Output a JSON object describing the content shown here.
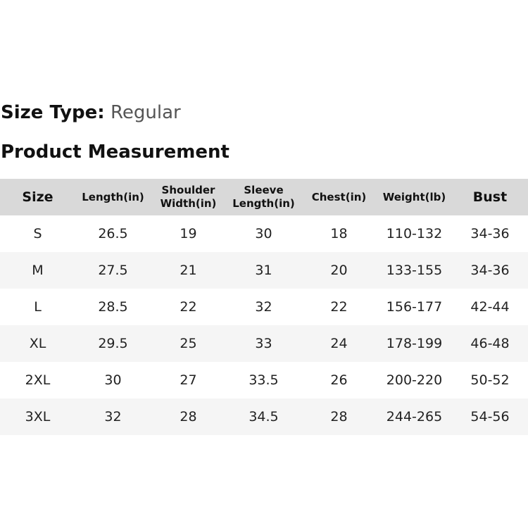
{
  "size_type": {
    "label": "Size Type:",
    "value": "Regular"
  },
  "section_title": "Product Measurement",
  "table": {
    "headers": [
      "Size",
      "Length(in)",
      "Shoulder Width(in)",
      "Sleeve Length(in)",
      "Chest(in)",
      "Weight(lb)",
      "Bust"
    ],
    "rows": [
      [
        "S",
        "26.5",
        "19",
        "30",
        "18",
        "110-132",
        "34-36"
      ],
      [
        "M",
        "27.5",
        "21",
        "31",
        "20",
        "133-155",
        "34-36"
      ],
      [
        "L",
        "28.5",
        "22",
        "32",
        "22",
        "156-177",
        "42-44"
      ],
      [
        "XL",
        "29.5",
        "25",
        "33",
        "24",
        "178-199",
        "46-48"
      ],
      [
        "2XL",
        "30",
        "27",
        "33.5",
        "26",
        "200-220",
        "50-52"
      ],
      [
        "3XL",
        "32",
        "28",
        "34.5",
        "28",
        "244-265",
        "54-56"
      ]
    ]
  },
  "colors": {
    "header_background": "#d9d9d9",
    "stripe_background": "#f5f5f5",
    "value_text": "#555555"
  }
}
